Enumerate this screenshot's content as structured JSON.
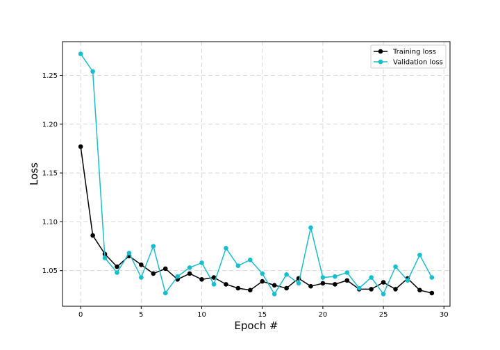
{
  "chart_data": {
    "type": "line",
    "xlabel": "Epoch #",
    "ylabel": "Loss",
    "xlim": [
      -1.5,
      30.5
    ],
    "ylim": [
      1.0135,
      1.2845
    ],
    "xticks": [
      0,
      5,
      10,
      15,
      20,
      25,
      30
    ],
    "yticks": [
      1.05,
      1.1,
      1.15,
      1.2,
      1.25
    ],
    "xtick_labels": [
      "0",
      "5",
      "10",
      "15",
      "20",
      "25",
      "30"
    ],
    "ytick_labels": [
      "1.05",
      "1.10",
      "1.15",
      "1.20",
      "1.25"
    ],
    "grid": true,
    "legend_position": "top-right",
    "x": [
      0,
      1,
      2,
      3,
      4,
      5,
      6,
      7,
      8,
      9,
      10,
      11,
      12,
      13,
      14,
      15,
      16,
      17,
      18,
      19,
      20,
      21,
      22,
      23,
      24,
      25,
      26,
      27,
      28,
      29
    ],
    "series": [
      {
        "name": "Training loss",
        "color": "#000000",
        "values": [
          1.177,
          1.086,
          1.067,
          1.054,
          1.065,
          1.056,
          1.047,
          1.052,
          1.041,
          1.047,
          1.041,
          1.043,
          1.036,
          1.032,
          1.03,
          1.039,
          1.035,
          1.032,
          1.042,
          1.034,
          1.037,
          1.036,
          1.04,
          1.031,
          1.031,
          1.038,
          1.031,
          1.042,
          1.03,
          1.027
        ]
      },
      {
        "name": "Validation loss",
        "color": "#17becf",
        "values": [
          1.272,
          1.254,
          1.063,
          1.048,
          1.068,
          1.043,
          1.075,
          1.027,
          1.044,
          1.053,
          1.058,
          1.036,
          1.073,
          1.055,
          1.061,
          1.047,
          1.026,
          1.046,
          1.037,
          1.094,
          1.043,
          1.044,
          1.048,
          1.032,
          1.043,
          1.026,
          1.054,
          1.04,
          1.066,
          1.043
        ]
      }
    ]
  }
}
